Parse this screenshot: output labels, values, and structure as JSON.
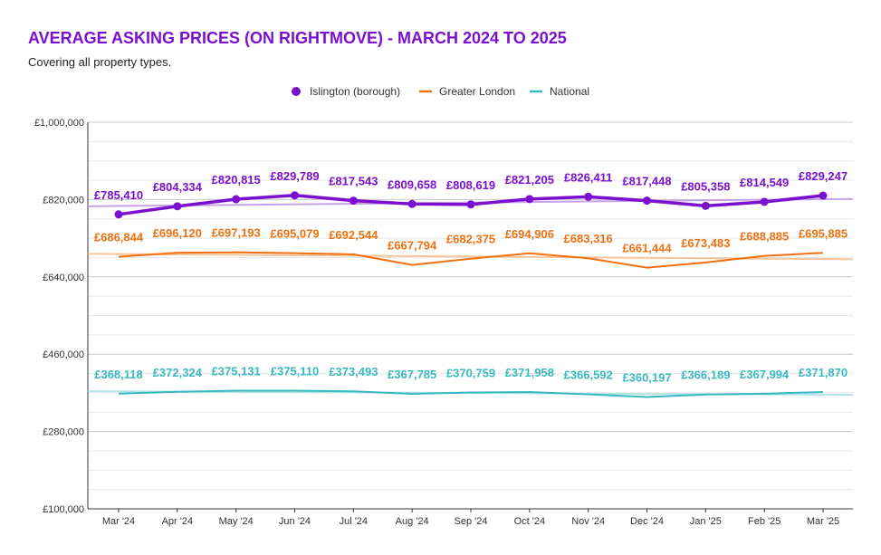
{
  "chart_data": {
    "type": "line",
    "title": "AVERAGE ASKING PRICES (ON RIGHTMOVE) - MARCH 2024 TO 2025",
    "subtitle": "Covering all property types.",
    "title_color": "#7b10d0",
    "categories": [
      "Mar '24",
      "Apr '24",
      "May '24",
      "Jun '24",
      "Jul '24",
      "Aug '24",
      "Sep '24",
      "Oct '24",
      "Nov '24",
      "Dec '24",
      "Jan '25",
      "Feb '25",
      "Mar '25"
    ],
    "y_ticks": [
      100000,
      280000,
      460000,
      640000,
      820000,
      1000000
    ],
    "y_tick_labels": [
      "£100,000",
      "£280,000",
      "£460,000",
      "£640,000",
      "£820,000",
      "£1,000,000"
    ],
    "ylim": [
      100000,
      1000000
    ],
    "grid": true,
    "legend_position": "top-center",
    "series": [
      {
        "name": "Islington (borough)",
        "color": "#7b10d0",
        "trend_color": "#c7a3e6",
        "marker": "circle",
        "values": [
          785410,
          804334,
          820815,
          829789,
          817543,
          809658,
          808619,
          821205,
          826411,
          817448,
          805358,
          814549,
          829247
        ],
        "labels": [
          "£785,410",
          "£804,334",
          "£820,815",
          "£829,789",
          "£817,543",
          "£809,658",
          "£808,619",
          "£821,205",
          "£826,411",
          "£817,448",
          "£805,358",
          "£814,549",
          "£829,247"
        ],
        "trend": [
          804300,
          821500
        ]
      },
      {
        "name": "Greater London",
        "color": "#f07010",
        "trend_color": "#f8c49a",
        "marker": "none",
        "values": [
          686844,
          696120,
          697193,
          695079,
          692544,
          667794,
          682375,
          694906,
          683316,
          661444,
          673483,
          688885,
          695885
        ],
        "labels": [
          "£686,844",
          "£696,120",
          "£697,193",
          "£695,079",
          "£692,544",
          "£667,794",
          "£682,375",
          "£694,906",
          "£683,316",
          "£661,444",
          "£673,483",
          "£688,885",
          "£695,885"
        ],
        "trend": [
          693500,
          681000
        ]
      },
      {
        "name": "National",
        "color": "#38b9c0",
        "trend_color": "#b3e4e6",
        "marker": "none",
        "values": [
          368118,
          372324,
          375131,
          375110,
          373493,
          367785,
          370759,
          371958,
          366592,
          360197,
          366189,
          367994,
          371870
        ],
        "labels": [
          "£368,118",
          "£372,324",
          "£375,131",
          "£375,110",
          "£373,493",
          "£367,785",
          "£370,759",
          "£371,958",
          "£366,592",
          "£360,197",
          "£366,189",
          "£367,994",
          "£371,870"
        ],
        "trend": [
          373800,
          365500
        ]
      }
    ]
  }
}
